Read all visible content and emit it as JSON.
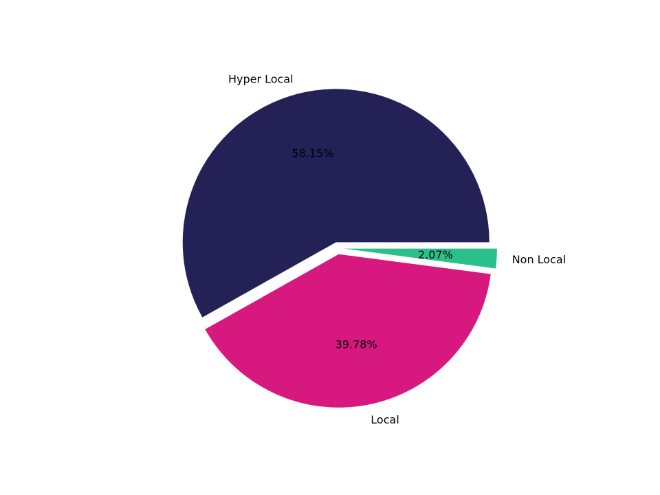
{
  "figure": {
    "background": "#ffffff",
    "text_color": "#000000"
  },
  "chart_data": {
    "type": "pie",
    "title": "",
    "labels": [
      "Hyper Local",
      "Local",
      "Non Local"
    ],
    "values": [
      58.15,
      39.78,
      2.07
    ],
    "value_labels": [
      "58.15%",
      "39.78%",
      "2.07%"
    ],
    "colors": [
      "#232156",
      "#d6187f",
      "#2bbf8c"
    ],
    "start_angle_deg": 0,
    "direction": "counterclockwise",
    "explode_fraction": 0.04,
    "label_distance": 1.1,
    "pct_distance": 0.6,
    "legend_position": "none",
    "grid": false
  }
}
